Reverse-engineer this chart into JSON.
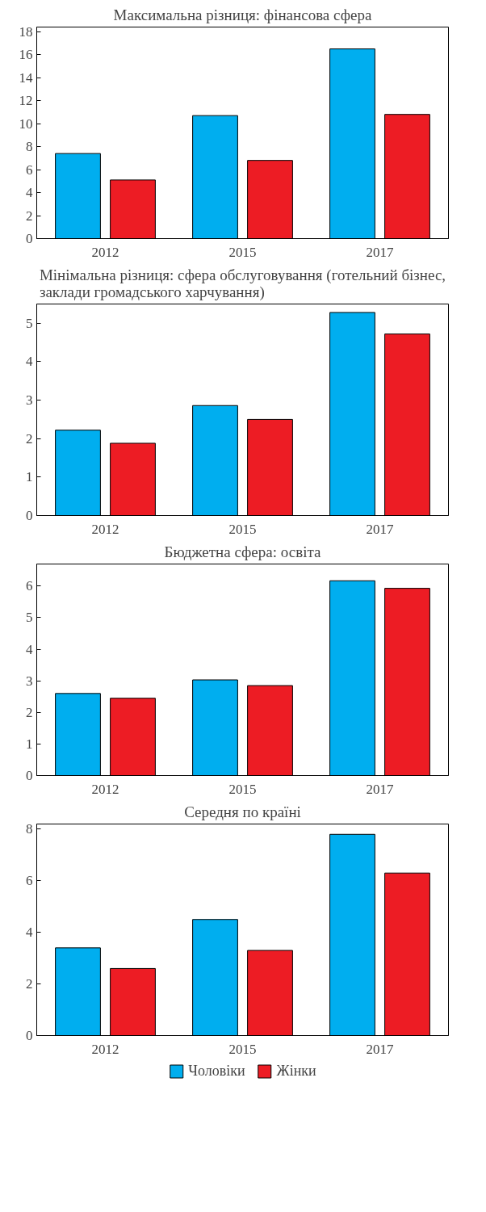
{
  "chart_data": [
    {
      "type": "bar",
      "title": "Максимальна різниця: фінансова сфера",
      "categories": [
        "2012",
        "2015",
        "2017"
      ],
      "series": [
        {
          "color": "#00aeef",
          "values": [
            7.4,
            10.7,
            16.5
          ]
        },
        {
          "color": "#ed1c24",
          "values": [
            5.1,
            6.8,
            10.8
          ]
        }
      ],
      "ylim": [
        0,
        18.4
      ],
      "yticks": [
        0,
        2,
        4,
        6,
        8,
        10,
        12,
        14,
        16,
        18
      ],
      "grid": false
    },
    {
      "type": "bar",
      "title": "Мінімальна різниця: сфера обслуговування (готельний бізнес, заклади громадського харчування)",
      "categories": [
        "2012",
        "2015",
        "2017"
      ],
      "series": [
        {
          "color": "#00aeef",
          "values": [
            2.22,
            2.86,
            5.28
          ]
        },
        {
          "color": "#ed1c24",
          "values": [
            1.88,
            2.5,
            4.72
          ]
        }
      ],
      "ylim": [
        0,
        5.5
      ],
      "yticks": [
        0,
        1,
        2,
        3,
        4,
        5
      ],
      "grid": false
    },
    {
      "type": "bar",
      "title": "Бюджетна сфера: освіта",
      "categories": [
        "2012",
        "2015",
        "2017"
      ],
      "series": [
        {
          "color": "#00aeef",
          "values": [
            2.6,
            3.03,
            6.17
          ]
        },
        {
          "color": "#ed1c24",
          "values": [
            2.45,
            2.85,
            5.93
          ]
        }
      ],
      "ylim": [
        0,
        6.7
      ],
      "yticks": [
        0,
        1,
        2,
        3,
        4,
        5,
        6
      ],
      "grid": false
    },
    {
      "type": "bar",
      "title": "Середня по країні",
      "categories": [
        "2012",
        "2015",
        "2017"
      ],
      "series": [
        {
          "name": "Чоловіки",
          "color": "#00aeef",
          "values": [
            3.4,
            4.5,
            7.8
          ]
        },
        {
          "name": "Жінки",
          "color": "#ed1c24",
          "values": [
            2.6,
            3.3,
            6.3
          ]
        }
      ],
      "ylim": [
        0,
        8.2
      ],
      "yticks": [
        0,
        2,
        4,
        6,
        8
      ],
      "grid": false,
      "legend": "bottom"
    }
  ]
}
